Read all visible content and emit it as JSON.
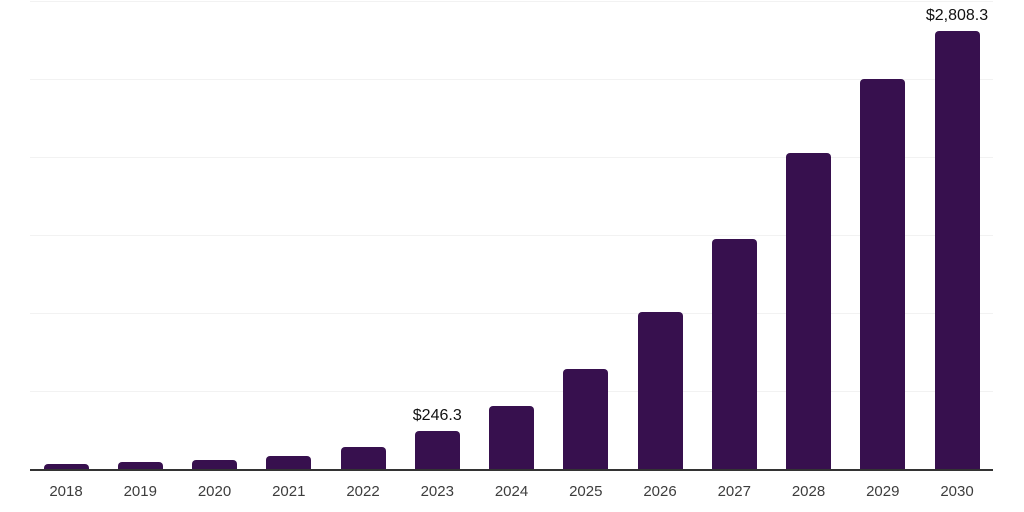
{
  "chart_data": {
    "type": "bar",
    "title": "",
    "xlabel": "",
    "ylabel": "",
    "categories": [
      "2018",
      "2019",
      "2020",
      "2021",
      "2022",
      "2023",
      "2024",
      "2025",
      "2026",
      "2027",
      "2028",
      "2029",
      "2030"
    ],
    "values": [
      35,
      45,
      59,
      82,
      142,
      246.3,
      401,
      638,
      1004,
      1475,
      2025,
      2503,
      2808.3
    ],
    "value_labels": {
      "2023": "$246.3",
      "2030": "$2,808.3"
    },
    "ylim": [
      0,
      3000
    ],
    "gridline_step": 500,
    "grid": true,
    "legend_position": "none",
    "y_tick_labels_visible": false
  },
  "style": {
    "bar_color": "#37104e",
    "gridline_color": "#f2f2f2",
    "axis_line_color": "#333333",
    "tick_label_color": "#3d3d3d",
    "data_label_color": "#111111",
    "background_color": "#ffffff"
  }
}
